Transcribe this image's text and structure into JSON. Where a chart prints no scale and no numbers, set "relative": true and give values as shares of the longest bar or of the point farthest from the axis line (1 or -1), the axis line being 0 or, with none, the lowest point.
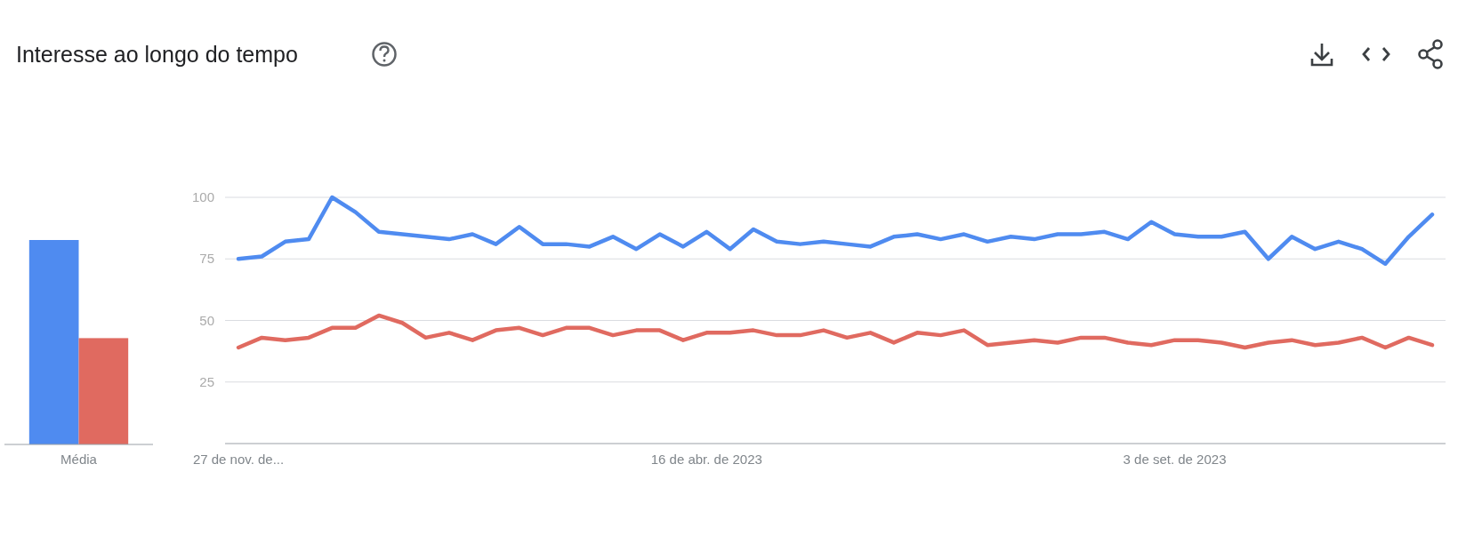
{
  "chart_data": [
    {
      "type": "bar",
      "title": "Interesse ao longo do tempo",
      "relative": true,
      "categories": [
        "Média"
      ],
      "series": [
        {
          "color": "#4f8bf0",
          "values": [
            1
          ]
        },
        {
          "color": "#e06a60",
          "values": [
            0.52
          ]
        }
      ]
    },
    {
      "type": "line",
      "x": [
        "2022-11-27",
        "2022-12-04",
        "2022-12-11",
        "2022-12-18",
        "2022-12-25",
        "2023-01-01",
        "2023-01-08",
        "2023-01-15",
        "2023-01-22",
        "2023-01-29",
        "2023-02-05",
        "2023-02-12",
        "2023-02-19",
        "2023-02-26",
        "2023-03-05",
        "2023-03-12",
        "2023-03-19",
        "2023-03-26",
        "2023-04-02",
        "2023-04-09",
        "2023-04-16",
        "2023-04-23",
        "2023-04-30",
        "2023-05-07",
        "2023-05-14",
        "2023-05-21",
        "2023-05-28",
        "2023-06-04",
        "2023-06-11",
        "2023-06-18",
        "2023-06-25",
        "2023-07-02",
        "2023-07-09",
        "2023-07-16",
        "2023-07-23",
        "2023-07-30",
        "2023-08-06",
        "2023-08-13",
        "2023-08-20",
        "2023-08-27",
        "2023-09-03",
        "2023-09-10",
        "2023-09-17",
        "2023-09-24",
        "2023-10-01",
        "2023-10-08",
        "2023-10-15",
        "2023-10-22",
        "2023-10-29",
        "2023-11-05",
        "2023-11-12",
        "2023-11-19"
      ],
      "series": [
        {
          "color": "#4f8bf0",
          "values": [
            75,
            76,
            82,
            83,
            100,
            94,
            86,
            85,
            84,
            83,
            85,
            81,
            88,
            81,
            81,
            80,
            84,
            79,
            85,
            80,
            86,
            79,
            87,
            82,
            81,
            82,
            81,
            80,
            84,
            85,
            83,
            85,
            82,
            84,
            83,
            85,
            85,
            86,
            83,
            90,
            85,
            84,
            84,
            86,
            75,
            84,
            79,
            82,
            79,
            73,
            84,
            93
          ]
        },
        {
          "color": "#e06a60",
          "values": [
            39,
            43,
            42,
            43,
            47,
            47,
            52,
            49,
            43,
            45,
            42,
            46,
            47,
            44,
            47,
            47,
            44,
            46,
            46,
            42,
            45,
            45,
            46,
            44,
            44,
            46,
            43,
            45,
            41,
            45,
            44,
            46,
            40,
            41,
            42,
            41,
            43,
            43,
            41,
            40,
            42,
            42,
            41,
            39,
            41,
            42,
            40,
            41,
            43,
            39,
            43,
            40
          ]
        }
      ],
      "xlim": [
        "2022-11-23",
        "2023-11-23"
      ],
      "xticks": [
        {
          "value": "2022-11-27",
          "label": "27 de nov. de..."
        },
        {
          "value": "2023-04-16",
          "label": "16 de abr. de 2023"
        },
        {
          "value": "2023-09-03",
          "label": "3 de set. de 2023"
        }
      ],
      "ylim": [
        0,
        100
      ],
      "yticks": [
        25,
        50,
        75,
        100
      ],
      "grid": "y",
      "marker": "none",
      "line_style": "solid"
    }
  ]
}
